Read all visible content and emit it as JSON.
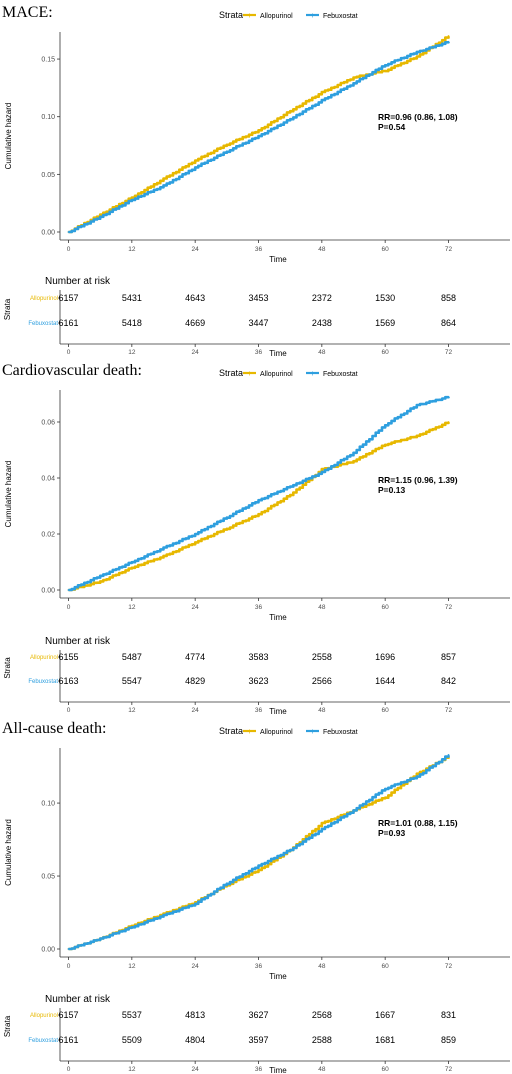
{
  "colors": {
    "allopurinol": "#E7B800",
    "febuxostat": "#2E9FDF",
    "axis": "#333333",
    "tick_label": "#4D4D4D"
  },
  "legend": {
    "title": "Strata",
    "entries": [
      "Allopurinol",
      "Febuxostat"
    ]
  },
  "risk_table": {
    "title": "Number at risk",
    "strata_label": "Strata",
    "time_label": "Time"
  },
  "chart_data": [
    {
      "type": "line",
      "title": "MACE:",
      "xlabel": "Time",
      "ylabel": "Cumulative hazard",
      "xlim": [
        0,
        72
      ],
      "xticks": [
        0,
        12,
        24,
        36,
        48,
        60,
        72
      ],
      "ylim": [
        0,
        0.17
      ],
      "yticks": [
        0.0,
        0.05,
        0.1,
        0.15
      ],
      "ytick_labels": [
        "0.00",
        "0.05",
        "0.10",
        "0.15"
      ],
      "annotation": [
        "RR=0.96 (0.86, 1.08)",
        "P=0.54"
      ],
      "legend_position": "top",
      "grid": false,
      "series": [
        {
          "name": "Allopurinol",
          "x": [
            0,
            6,
            12,
            18,
            24,
            30,
            36,
            42,
            48,
            54,
            60,
            66,
            72
          ],
          "y": [
            0.0,
            0.015,
            0.03,
            0.046,
            0.062,
            0.076,
            0.088,
            0.105,
            0.121,
            0.134,
            0.14,
            0.152,
            0.17
          ]
        },
        {
          "name": "Febuxostat",
          "x": [
            0,
            6,
            12,
            18,
            24,
            30,
            36,
            42,
            48,
            54,
            60,
            66,
            72
          ],
          "y": [
            0.0,
            0.013,
            0.028,
            0.04,
            0.056,
            0.07,
            0.083,
            0.098,
            0.114,
            0.129,
            0.145,
            0.156,
            0.165
          ]
        }
      ],
      "risk_table": {
        "times": [
          0,
          12,
          24,
          36,
          48,
          60,
          72
        ],
        "Allopurinol": [
          "6157",
          "5431",
          "4643",
          "3453",
          "2372",
          "1530",
          "858"
        ],
        "Febuxostat": [
          "6161",
          "5418",
          "4669",
          "3447",
          "2438",
          "1569",
          "864"
        ]
      }
    },
    {
      "type": "line",
      "title": "Cardiovascular death:",
      "xlabel": "Time",
      "ylabel": "Cumulative hazard",
      "xlim": [
        0,
        72
      ],
      "xticks": [
        0,
        12,
        24,
        36,
        48,
        60,
        72
      ],
      "ylim": [
        0,
        0.07
      ],
      "yticks": [
        0.0,
        0.02,
        0.04,
        0.06
      ],
      "ytick_labels": [
        "0.00",
        "0.02",
        "0.04",
        "0.06"
      ],
      "annotation": [
        "RR=1.15 (0.96, 1.39)",
        "P=0.13"
      ],
      "legend_position": "top",
      "grid": false,
      "series": [
        {
          "name": "Allopurinol",
          "x": [
            0,
            6,
            12,
            18,
            24,
            30,
            36,
            42,
            48,
            54,
            60,
            66,
            72
          ],
          "y": [
            0.0,
            0.003,
            0.008,
            0.012,
            0.017,
            0.022,
            0.027,
            0.034,
            0.043,
            0.046,
            0.052,
            0.055,
            0.06
          ]
        },
        {
          "name": "Febuxostat",
          "x": [
            0,
            6,
            12,
            18,
            24,
            30,
            36,
            42,
            48,
            54,
            60,
            66,
            72
          ],
          "y": [
            0.0,
            0.005,
            0.01,
            0.015,
            0.02,
            0.026,
            0.032,
            0.037,
            0.042,
            0.049,
            0.059,
            0.066,
            0.069
          ]
        }
      ],
      "risk_table": {
        "times": [
          0,
          12,
          24,
          36,
          48,
          60,
          72
        ],
        "Allopurinol": [
          "6155",
          "5487",
          "4774",
          "3583",
          "2558",
          "1696",
          "857"
        ],
        "Febuxostat": [
          "6163",
          "5547",
          "4829",
          "3623",
          "2566",
          "1644",
          "842"
        ]
      }
    },
    {
      "type": "line",
      "title": "All-cause death:",
      "xlabel": "Time",
      "ylabel": "Cumulative hazard",
      "xlim": [
        0,
        72
      ],
      "xticks": [
        0,
        12,
        24,
        36,
        48,
        60,
        72
      ],
      "ylim": [
        0,
        0.135
      ],
      "yticks": [
        0.0,
        0.05,
        0.1
      ],
      "ytick_labels": [
        "0.00",
        "0.05",
        "0.10"
      ],
      "annotation": [
        "RR=1.01 (0.88, 1.15)",
        "P=0.93"
      ],
      "legend_position": "top",
      "grid": false,
      "series": [
        {
          "name": "Allopurinol",
          "x": [
            0,
            6,
            12,
            18,
            24,
            30,
            36,
            42,
            48,
            54,
            60,
            66,
            72
          ],
          "y": [
            0.0,
            0.007,
            0.016,
            0.024,
            0.032,
            0.044,
            0.054,
            0.068,
            0.086,
            0.095,
            0.104,
            0.12,
            0.132
          ]
        },
        {
          "name": "Febuxostat",
          "x": [
            0,
            6,
            12,
            18,
            24,
            30,
            36,
            42,
            48,
            54,
            60,
            66,
            72
          ],
          "y": [
            0.0,
            0.007,
            0.015,
            0.023,
            0.031,
            0.045,
            0.057,
            0.068,
            0.082,
            0.095,
            0.11,
            0.118,
            0.133
          ]
        }
      ],
      "risk_table": {
        "times": [
          0,
          12,
          24,
          36,
          48,
          60,
          72
        ],
        "Allopurinol": [
          "6157",
          "5537",
          "4813",
          "3627",
          "2568",
          "1667",
          "831"
        ],
        "Febuxostat": [
          "6161",
          "5509",
          "4804",
          "3597",
          "2588",
          "1681",
          "859"
        ]
      }
    }
  ]
}
